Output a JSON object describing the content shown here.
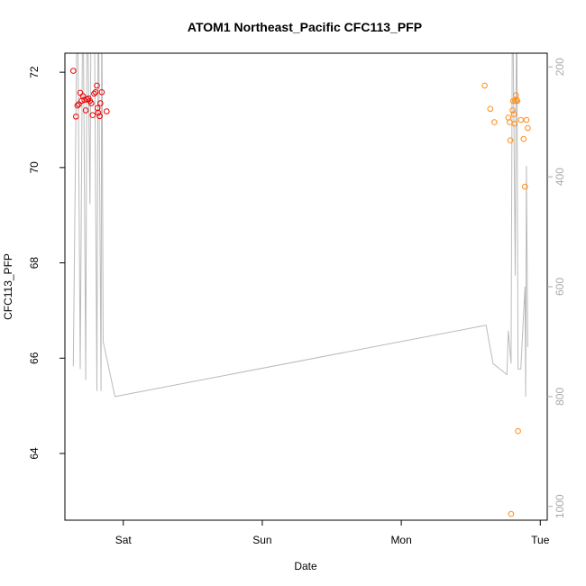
{
  "chart_data": {
    "type": "scatter",
    "title": "ATOM1 Northeast_Pacific CFC113_PFP",
    "xlabel": "Date",
    "ylabel": "CFC113_PFP",
    "x_unit": "days",
    "xlim": [
      -0.42,
      3.05
    ],
    "ylim": [
      62.6,
      72.4
    ],
    "x_ticks": [
      {
        "value": 0,
        "label": "Sat"
      },
      {
        "value": 1,
        "label": "Sun"
      },
      {
        "value": 2,
        "label": "Mon"
      },
      {
        "value": 3,
        "label": "Tue"
      }
    ],
    "y_ticks": [
      64,
      66,
      68,
      70,
      72
    ],
    "right_axis": {
      "lim": [
        1025,
        175
      ],
      "ticks": [
        200,
        400,
        600,
        800,
        1000
      ]
    },
    "series": [
      {
        "color": "#ee0000",
        "points": [
          [
            -0.36,
            72.03
          ],
          [
            -0.34,
            71.07
          ],
          [
            -0.33,
            71.3
          ],
          [
            -0.32,
            71.33
          ],
          [
            -0.31,
            71.57
          ],
          [
            -0.3,
            71.4
          ],
          [
            -0.29,
            71.5
          ],
          [
            -0.28,
            71.42
          ],
          [
            -0.27,
            71.2
          ],
          [
            -0.26,
            71.43
          ],
          [
            -0.25,
            71.45
          ],
          [
            -0.24,
            71.4
          ],
          [
            -0.23,
            71.35
          ],
          [
            -0.22,
            71.1
          ],
          [
            -0.21,
            71.55
          ],
          [
            -0.2,
            71.58
          ],
          [
            -0.19,
            71.72
          ],
          [
            -0.185,
            71.25
          ],
          [
            -0.18,
            71.15
          ],
          [
            -0.17,
            71.08
          ],
          [
            -0.165,
            71.35
          ],
          [
            -0.155,
            71.58
          ],
          [
            -0.12,
            71.18
          ]
        ]
      },
      {
        "color": "#ff8c1a",
        "points": [
          [
            2.6,
            71.72
          ],
          [
            2.64,
            71.23
          ],
          [
            2.67,
            70.95
          ],
          [
            2.77,
            71.05
          ],
          [
            2.78,
            70.95
          ],
          [
            2.785,
            70.57
          ],
          [
            2.79,
            62.73
          ],
          [
            2.8,
            71.2
          ],
          [
            2.805,
            71.4
          ],
          [
            2.81,
            71.12
          ],
          [
            2.815,
            70.92
          ],
          [
            2.82,
            71.4
          ],
          [
            2.825,
            71.52
          ],
          [
            2.83,
            71.42
          ],
          [
            2.835,
            71.4
          ],
          [
            2.84,
            64.47
          ],
          [
            2.86,
            71.0
          ],
          [
            2.88,
            70.6
          ],
          [
            2.89,
            69.6
          ],
          [
            2.9,
            71.0
          ],
          [
            2.91,
            70.83
          ]
        ]
      }
    ],
    "secondary_series": {
      "color": "#bbbbbb",
      "points": [
        [
          -0.36,
          745
        ],
        [
          -0.33,
          20
        ],
        [
          -0.31,
          750
        ],
        [
          -0.29,
          20
        ],
        [
          -0.27,
          770
        ],
        [
          -0.26,
          20
        ],
        [
          -0.24,
          450
        ],
        [
          -0.23,
          20
        ],
        [
          -0.21,
          20
        ],
        [
          -0.19,
          790
        ],
        [
          -0.18,
          20
        ],
        [
          -0.16,
          790
        ],
        [
          -0.155,
          20
        ],
        [
          -0.145,
          700
        ],
        [
          -0.06,
          800
        ],
        [
          2.61,
          670
        ],
        [
          2.66,
          740
        ],
        [
          2.76,
          760
        ],
        [
          2.77,
          680
        ],
        [
          2.79,
          740
        ],
        [
          2.8,
          20
        ],
        [
          2.82,
          580
        ],
        [
          2.83,
          20
        ],
        [
          2.84,
          750
        ],
        [
          2.86,
          750
        ],
        [
          2.89,
          600
        ],
        [
          2.895,
          800
        ],
        [
          2.9,
          380
        ],
        [
          2.91,
          710
        ]
      ]
    }
  }
}
